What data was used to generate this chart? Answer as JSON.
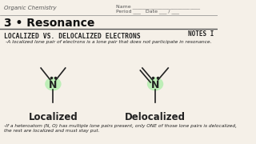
{
  "bg_color": "#f5f0e8",
  "header_left": "Organic Chemistry",
  "header_right_name": "Name ___________________________",
  "header_right_period": "Period ___   Date ___ / ___",
  "title": "3 • Resonance",
  "notes_label": "NOTES I",
  "section_title": "LOCALIZED VS. DELOCALIZED ELECTRONS",
  "subtitle": "-A localized lone pair of electrons is a lone pair that does not participate in resonance.",
  "label_localized": "Localized",
  "label_delocalized": "Delocalized",
  "footer": "-If a heteroatom (N, O) has multiple lone pairs present, only ONE of those lone pairs is delocalized,\nthe rest are localized and must stay put.",
  "green_color": "#90ee90",
  "green_alpha": 0.55,
  "line_color": "#222222",
  "title_color": "#111111",
  "header_color": "#555555"
}
